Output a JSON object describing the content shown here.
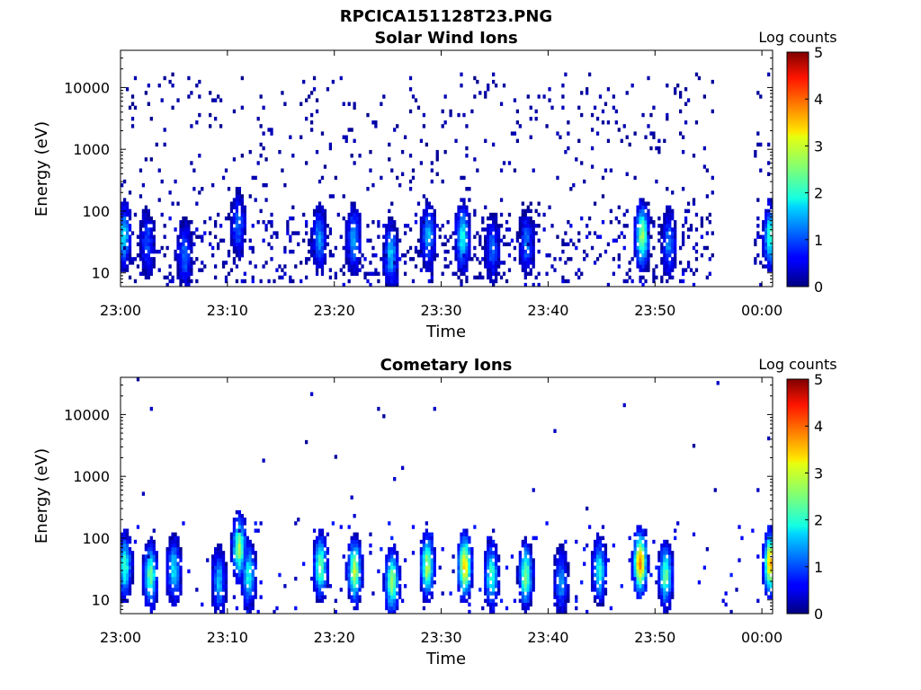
{
  "figure": {
    "title": "RPCICA151128T23.PNG"
  },
  "chart_data": [
    {
      "type": "heatmap",
      "title": "Solar Wind Ions",
      "xlabel": "Time",
      "ylabel": "Energy (eV)",
      "xticks": [
        "23:00",
        "23:10",
        "23:20",
        "23:30",
        "23:40",
        "23:50",
        "00:00"
      ],
      "xlim_minutes": [
        0,
        61
      ],
      "yscale": "log",
      "ylim": [
        6,
        40000
      ],
      "yticks": [
        10,
        100,
        1000,
        10000
      ],
      "ytick_labels": [
        "10",
        "100",
        "1000",
        "10000"
      ],
      "data_gap_minutes": [
        55.5,
        59.2
      ],
      "colorbar": {
        "label": "Log counts",
        "range": [
          0,
          5
        ],
        "ticks": [
          "0",
          "1",
          "2",
          "3",
          "4",
          "5"
        ],
        "colormap": "jet"
      },
      "features": [
        {
          "time_min": 0.3,
          "energy_ev": 40,
          "log_counts": 1.8
        },
        {
          "time_min": 2.5,
          "energy_ev": 30,
          "log_counts": 1.0
        },
        {
          "time_min": 6.0,
          "energy_ev": 20,
          "log_counts": 1.2
        },
        {
          "time_min": 11.0,
          "energy_ev": 60,
          "log_counts": 1.2
        },
        {
          "time_min": 18.6,
          "energy_ev": 35,
          "log_counts": 1.4
        },
        {
          "time_min": 21.8,
          "energy_ev": 35,
          "log_counts": 1.5
        },
        {
          "time_min": 25.3,
          "energy_ev": 20,
          "log_counts": 1.6
        },
        {
          "time_min": 28.8,
          "energy_ev": 40,
          "log_counts": 1.5
        },
        {
          "time_min": 32.0,
          "energy_ev": 38,
          "log_counts": 2.0
        },
        {
          "time_min": 34.8,
          "energy_ev": 25,
          "log_counts": 1.1
        },
        {
          "time_min": 38.0,
          "energy_ev": 30,
          "log_counts": 1.2
        },
        {
          "time_min": 48.8,
          "energy_ev": 40,
          "log_counts": 2.7
        },
        {
          "time_min": 51.3,
          "energy_ev": 30,
          "log_counts": 1.3
        },
        {
          "time_min": 60.8,
          "energy_ev": 40,
          "log_counts": 2.2
        }
      ]
    },
    {
      "type": "heatmap",
      "title": "Cometary Ions",
      "xlabel": "Time",
      "ylabel": "Energy (eV)",
      "xticks": [
        "23:00",
        "23:10",
        "23:20",
        "23:30",
        "23:40",
        "23:50",
        "00:00"
      ],
      "xlim_minutes": [
        0,
        61
      ],
      "yscale": "log",
      "ylim": [
        6,
        40000
      ],
      "yticks": [
        10,
        100,
        1000,
        10000
      ],
      "ytick_labels": [
        "10",
        "100",
        "1000",
        "10000"
      ],
      "colorbar": {
        "label": "Log counts",
        "range": [
          0,
          5
        ],
        "ticks": [
          "0",
          "1",
          "2",
          "3",
          "4",
          "5"
        ],
        "colormap": "jet"
      },
      "features": [
        {
          "time_min": 0.4,
          "energy_ev": 35,
          "log_counts": 2.2
        },
        {
          "time_min": 2.8,
          "energy_ev": 25,
          "log_counts": 2.4
        },
        {
          "time_min": 5.0,
          "energy_ev": 30,
          "log_counts": 1.8
        },
        {
          "time_min": 9.2,
          "energy_ev": 20,
          "log_counts": 1.6
        },
        {
          "time_min": 11.1,
          "energy_ev": 70,
          "log_counts": 2.7
        },
        {
          "time_min": 12.0,
          "energy_ev": 25,
          "log_counts": 2.0
        },
        {
          "time_min": 18.7,
          "energy_ev": 35,
          "log_counts": 2.5
        },
        {
          "time_min": 21.9,
          "energy_ev": 30,
          "log_counts": 2.8
        },
        {
          "time_min": 25.4,
          "energy_ev": 20,
          "log_counts": 2.7
        },
        {
          "time_min": 28.7,
          "energy_ev": 35,
          "log_counts": 2.8
        },
        {
          "time_min": 32.2,
          "energy_ev": 35,
          "log_counts": 3.4
        },
        {
          "time_min": 34.7,
          "energy_ev": 25,
          "log_counts": 2.2
        },
        {
          "time_min": 37.9,
          "energy_ev": 25,
          "log_counts": 2.6
        },
        {
          "time_min": 41.2,
          "energy_ev": 20,
          "log_counts": 1.4
        },
        {
          "time_min": 44.8,
          "energy_ev": 30,
          "log_counts": 2.0
        },
        {
          "time_min": 48.6,
          "energy_ev": 40,
          "log_counts": 3.8
        },
        {
          "time_min": 51.0,
          "energy_ev": 25,
          "log_counts": 2.4
        },
        {
          "time_min": 60.8,
          "energy_ev": 40,
          "log_counts": 3.5
        }
      ]
    }
  ]
}
